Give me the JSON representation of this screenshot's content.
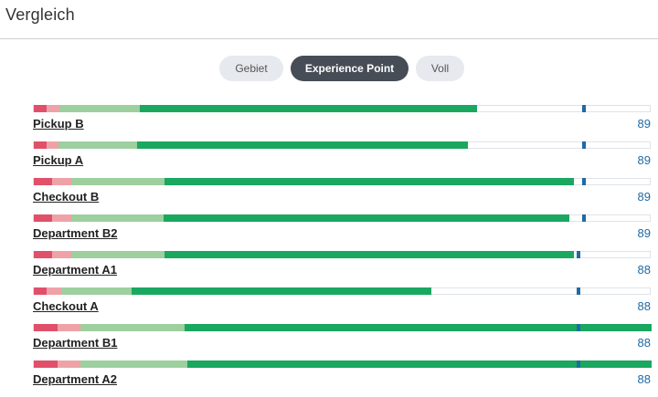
{
  "header": {
    "title": "Vergleich"
  },
  "tabs": [
    {
      "label": "Gebiet",
      "active": false
    },
    {
      "label": "Experience Point",
      "active": true
    },
    {
      "label": "Voll",
      "active": false
    }
  ],
  "colors": {
    "very_bad": "#e0506a",
    "bad": "#eea2a8",
    "good": "#9dcf9f",
    "very_good": "#1aa760",
    "marker": "#1f6aa5"
  },
  "rows": [
    {
      "label": "Pickup B",
      "score": "89",
      "segments": [
        0.02,
        0.022,
        0.13,
        0.545
      ],
      "marker": 0.888
    },
    {
      "label": "Pickup A",
      "score": "89",
      "segments": [
        0.02,
        0.02,
        0.127,
        0.535
      ],
      "marker": 0.888
    },
    {
      "label": "Checkout B",
      "score": "89",
      "segments": [
        0.03,
        0.03,
        0.152,
        0.662
      ],
      "marker": 0.888
    },
    {
      "label": "Department B2",
      "score": "89",
      "segments": [
        0.03,
        0.03,
        0.15,
        0.657
      ],
      "marker": 0.888
    },
    {
      "label": "Department A1",
      "score": "88",
      "segments": [
        0.03,
        0.03,
        0.152,
        0.662
      ],
      "marker": 0.878
    },
    {
      "label": "Checkout A",
      "score": "88",
      "segments": [
        0.02,
        0.025,
        0.113,
        0.485
      ],
      "marker": 0.878
    },
    {
      "label": "Department B1",
      "score": "88",
      "segments": [
        0.038,
        0.038,
        0.168,
        0.756
      ],
      "marker": 0.878
    },
    {
      "label": "Department A2",
      "score": "88",
      "segments": [
        0.038,
        0.038,
        0.173,
        0.751
      ],
      "marker": 0.878
    }
  ]
}
